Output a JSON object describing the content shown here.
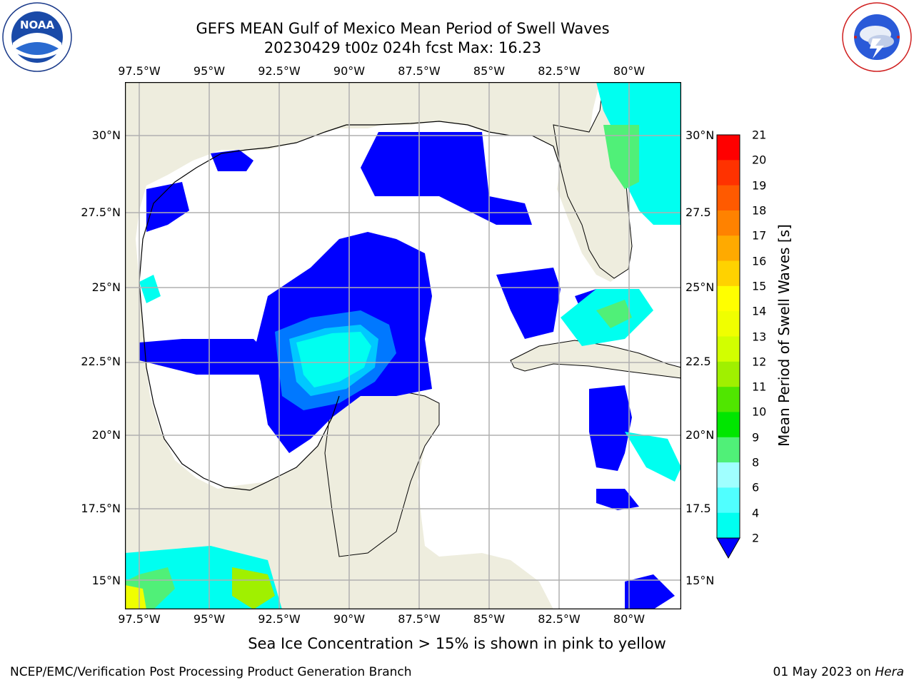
{
  "title": {
    "line1": "GEFS MEAN Gulf of Mexico Mean Period of Swell Waves",
    "line2": "20230429 t00z 024h fcst   Max: 16.23"
  },
  "logos": {
    "left": {
      "name": "noaa-logo",
      "text": "NOAA",
      "ring_text": "NATIONAL OCEANIC AND ATMOSPHERIC ADMINISTRATION · U.S. DEPARTMENT OF COMMERCE"
    },
    "right": {
      "name": "nws-logo",
      "ring_text": "NATIONAL WEATHER SERVICE"
    }
  },
  "map": {
    "lon_ticks": [
      "97.5°W",
      "95°W",
      "92.5°W",
      "90°W",
      "87.5°W",
      "85°W",
      "82.5°W",
      "80°W"
    ],
    "lat_ticks": [
      "30°N",
      "27.5°N",
      "25°N",
      "22.5°N",
      "20°N",
      "17.5°N",
      "15°N"
    ],
    "lat_ticks_right": [
      "30°N",
      "27.5",
      "25°N",
      "22.5",
      "20°N",
      "17.5",
      "15°N"
    ],
    "land_color": "#eeedde",
    "ocean_color": "#ffffff",
    "grid": true
  },
  "colorbar": {
    "label": "Mean Period of Swell Waves [s]",
    "ticks": [
      "2",
      "4",
      "6",
      "8",
      "9",
      "10",
      "11",
      "12",
      "13",
      "14",
      "15",
      "16",
      "17",
      "18",
      "19",
      "20",
      "21"
    ],
    "colors": [
      "#0078ff",
      "#00c8ff",
      "#00fff0",
      "#50ffff",
      "#a0ffff",
      "#50f078",
      "#00e600",
      "#50e600",
      "#a0f000",
      "#d2ff00",
      "#f0ff00",
      "#ffff00",
      "#ffd200",
      "#ffaa00",
      "#ff8200",
      "#ff5a00",
      "#ff3200",
      "#ff0000"
    ],
    "extend_min_color": "#0000ff"
  },
  "caption": "Sea Ice Concentration > 15% is shown in pink to yellow",
  "footer": {
    "left": "NCEP/EMC/Verification Post Processing Product Generation Branch",
    "date": "01 May 2023 on ",
    "system": "Hera"
  }
}
